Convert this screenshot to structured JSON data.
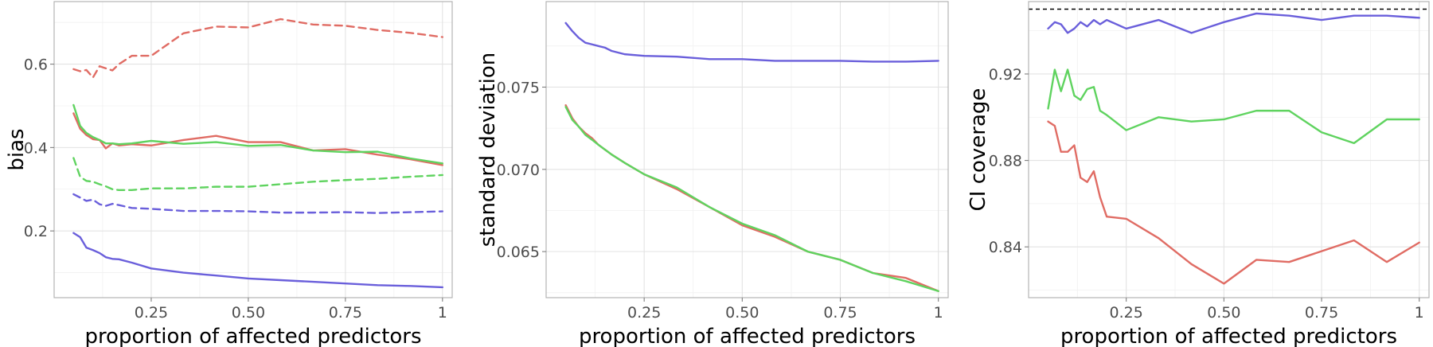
{
  "chart_data": [
    {
      "type": "line",
      "xlabel": "proportion of affected predictors",
      "ylabel": "bias",
      "xlim": [
        0.0,
        1.025
      ],
      "ylim": [
        0.04,
        0.75
      ],
      "x_ticks": [
        {
          "value": 0.25,
          "label": "0.25"
        },
        {
          "value": 0.5,
          "label": "0.50"
        },
        {
          "value": 0.75,
          "label": "0.75"
        },
        {
          "value": 1.0,
          "label": "1"
        }
      ],
      "y_ticks": [
        {
          "value": 0.2,
          "label": "0.2"
        },
        {
          "value": 0.4,
          "label": "0.4"
        },
        {
          "value": 0.6,
          "label": "0.6"
        }
      ],
      "grid": true,
      "series": [
        {
          "color": "#e06c64",
          "dash": "dashed",
          "points": [
            [
              0.05,
              0.588
            ],
            [
              0.067,
              0.583
            ],
            [
              0.083,
              0.586
            ],
            [
              0.1,
              0.568
            ],
            [
              0.117,
              0.595
            ],
            [
              0.133,
              0.59
            ],
            [
              0.15,
              0.585
            ],
            [
              0.167,
              0.6
            ],
            [
              0.2,
              0.62
            ],
            [
              0.25,
              0.62
            ],
            [
              0.333,
              0.674
            ],
            [
              0.417,
              0.69
            ],
            [
              0.5,
              0.688
            ],
            [
              0.583,
              0.708
            ],
            [
              0.667,
              0.695
            ],
            [
              0.75,
              0.692
            ],
            [
              0.833,
              0.682
            ],
            [
              0.917,
              0.675
            ],
            [
              1.0,
              0.665
            ]
          ]
        },
        {
          "color": "#e06c64",
          "dash": "solid",
          "points": [
            [
              0.05,
              0.482
            ],
            [
              0.067,
              0.445
            ],
            [
              0.083,
              0.43
            ],
            [
              0.1,
              0.42
            ],
            [
              0.117,
              0.418
            ],
            [
              0.133,
              0.398
            ],
            [
              0.15,
              0.41
            ],
            [
              0.167,
              0.405
            ],
            [
              0.2,
              0.408
            ],
            [
              0.25,
              0.405
            ],
            [
              0.333,
              0.418
            ],
            [
              0.417,
              0.428
            ],
            [
              0.5,
              0.413
            ],
            [
              0.583,
              0.413
            ],
            [
              0.667,
              0.393
            ],
            [
              0.75,
              0.396
            ],
            [
              0.833,
              0.383
            ],
            [
              0.917,
              0.372
            ],
            [
              1.0,
              0.358
            ]
          ]
        },
        {
          "color": "#5fd35f",
          "dash": "solid",
          "points": [
            [
              0.05,
              0.502
            ],
            [
              0.067,
              0.452
            ],
            [
              0.083,
              0.435
            ],
            [
              0.1,
              0.425
            ],
            [
              0.117,
              0.418
            ],
            [
              0.133,
              0.41
            ],
            [
              0.15,
              0.41
            ],
            [
              0.167,
              0.408
            ],
            [
              0.2,
              0.41
            ],
            [
              0.25,
              0.416
            ],
            [
              0.333,
              0.409
            ],
            [
              0.417,
              0.413
            ],
            [
              0.5,
              0.404
            ],
            [
              0.583,
              0.406
            ],
            [
              0.667,
              0.393
            ],
            [
              0.75,
              0.389
            ],
            [
              0.833,
              0.39
            ],
            [
              0.917,
              0.374
            ],
            [
              1.0,
              0.362
            ]
          ]
        },
        {
          "color": "#5fd35f",
          "dash": "dashed",
          "points": [
            [
              0.05,
              0.375
            ],
            [
              0.067,
              0.33
            ],
            [
              0.083,
              0.32
            ],
            [
              0.1,
              0.318
            ],
            [
              0.117,
              0.312
            ],
            [
              0.133,
              0.307
            ],
            [
              0.15,
              0.3
            ],
            [
              0.167,
              0.298
            ],
            [
              0.2,
              0.298
            ],
            [
              0.25,
              0.302
            ],
            [
              0.333,
              0.302
            ],
            [
              0.417,
              0.306
            ],
            [
              0.5,
              0.306
            ],
            [
              0.583,
              0.312
            ],
            [
              0.667,
              0.318
            ],
            [
              0.75,
              0.322
            ],
            [
              0.833,
              0.325
            ],
            [
              0.917,
              0.33
            ],
            [
              1.0,
              0.334
            ]
          ]
        },
        {
          "color": "#6a5fdb",
          "dash": "dashed",
          "points": [
            [
              0.05,
              0.288
            ],
            [
              0.067,
              0.28
            ],
            [
              0.083,
              0.272
            ],
            [
              0.1,
              0.275
            ],
            [
              0.117,
              0.264
            ],
            [
              0.133,
              0.26
            ],
            [
              0.15,
              0.265
            ],
            [
              0.167,
              0.262
            ],
            [
              0.2,
              0.255
            ],
            [
              0.25,
              0.253
            ],
            [
              0.333,
              0.248
            ],
            [
              0.417,
              0.248
            ],
            [
              0.5,
              0.247
            ],
            [
              0.583,
              0.244
            ],
            [
              0.667,
              0.244
            ],
            [
              0.75,
              0.245
            ],
            [
              0.833,
              0.243
            ],
            [
              0.917,
              0.245
            ],
            [
              1.0,
              0.247
            ]
          ]
        },
        {
          "color": "#6a5fdb",
          "dash": "solid",
          "points": [
            [
              0.05,
              0.195
            ],
            [
              0.067,
              0.185
            ],
            [
              0.083,
              0.16
            ],
            [
              0.1,
              0.154
            ],
            [
              0.117,
              0.147
            ],
            [
              0.133,
              0.137
            ],
            [
              0.15,
              0.133
            ],
            [
              0.167,
              0.132
            ],
            [
              0.2,
              0.124
            ],
            [
              0.25,
              0.11
            ],
            [
              0.333,
              0.1
            ],
            [
              0.417,
              0.093
            ],
            [
              0.5,
              0.086
            ],
            [
              0.583,
              0.082
            ],
            [
              0.667,
              0.078
            ],
            [
              0.75,
              0.074
            ],
            [
              0.833,
              0.07
            ],
            [
              0.917,
              0.068
            ],
            [
              1.0,
              0.065
            ]
          ]
        }
      ]
    },
    {
      "type": "line",
      "xlabel": "proportion of affected predictors",
      "ylabel": "standard deviation",
      "xlim": [
        0.0,
        1.025
      ],
      "ylim": [
        0.0622,
        0.0802
      ],
      "x_ticks": [
        {
          "value": 0.25,
          "label": "0.25"
        },
        {
          "value": 0.5,
          "label": "0.50"
        },
        {
          "value": 0.75,
          "label": "0.75"
        },
        {
          "value": 1.0,
          "label": "1"
        }
      ],
      "y_ticks": [
        {
          "value": 0.065,
          "label": "0.065"
        },
        {
          "value": 0.07,
          "label": "0.070"
        },
        {
          "value": 0.075,
          "label": "0.075"
        }
      ],
      "grid": true,
      "series": [
        {
          "color": "#6a5fdb",
          "dash": "solid",
          "points": [
            [
              0.05,
              0.0789
            ],
            [
              0.067,
              0.0784
            ],
            [
              0.083,
              0.078
            ],
            [
              0.1,
              0.0777
            ],
            [
              0.117,
              0.0776
            ],
            [
              0.133,
              0.0775
            ],
            [
              0.15,
              0.0774
            ],
            [
              0.167,
              0.0772
            ],
            [
              0.2,
              0.077
            ],
            [
              0.25,
              0.0769
            ],
            [
              0.333,
              0.07685
            ],
            [
              0.417,
              0.0767
            ],
            [
              0.5,
              0.0767
            ],
            [
              0.583,
              0.0766
            ],
            [
              0.667,
              0.0766
            ],
            [
              0.75,
              0.0766
            ],
            [
              0.833,
              0.07655
            ],
            [
              0.917,
              0.07655
            ],
            [
              1.0,
              0.0766
            ]
          ]
        },
        {
          "color": "#e06c64",
          "dash": "solid",
          "points": [
            [
              0.05,
              0.0739
            ],
            [
              0.067,
              0.0731
            ],
            [
              0.083,
              0.0726
            ],
            [
              0.1,
              0.0722
            ],
            [
              0.117,
              0.0719
            ],
            [
              0.133,
              0.0715
            ],
            [
              0.15,
              0.0712
            ],
            [
              0.167,
              0.0709
            ],
            [
              0.2,
              0.0704
            ],
            [
              0.25,
              0.0697
            ],
            [
              0.333,
              0.0688
            ],
            [
              0.417,
              0.0677
            ],
            [
              0.5,
              0.0666
            ],
            [
              0.583,
              0.0659
            ],
            [
              0.667,
              0.065
            ],
            [
              0.75,
              0.0645
            ],
            [
              0.833,
              0.0637
            ],
            [
              0.917,
              0.0634
            ],
            [
              1.0,
              0.0626
            ]
          ]
        },
        {
          "color": "#5fd35f",
          "dash": "solid",
          "points": [
            [
              0.05,
              0.0738
            ],
            [
              0.067,
              0.073
            ],
            [
              0.083,
              0.0726
            ],
            [
              0.1,
              0.0721
            ],
            [
              0.117,
              0.0718
            ],
            [
              0.133,
              0.0715
            ],
            [
              0.15,
              0.0712
            ],
            [
              0.167,
              0.0709
            ],
            [
              0.2,
              0.0704
            ],
            [
              0.25,
              0.0697
            ],
            [
              0.333,
              0.0689
            ],
            [
              0.417,
              0.0677
            ],
            [
              0.5,
              0.0667
            ],
            [
              0.583,
              0.066
            ],
            [
              0.667,
              0.065
            ],
            [
              0.75,
              0.0645
            ],
            [
              0.833,
              0.0637
            ],
            [
              0.917,
              0.0632
            ],
            [
              1.0,
              0.0626
            ]
          ]
        }
      ]
    },
    {
      "type": "line",
      "xlabel": "proportion of affected predictors",
      "ylabel": "CI coverage",
      "xlim": [
        0.0,
        1.025
      ],
      "ylim": [
        0.8165,
        0.9535
      ],
      "x_ticks": [
        {
          "value": 0.25,
          "label": "0.25"
        },
        {
          "value": 0.5,
          "label": "0.50"
        },
        {
          "value": 0.75,
          "label": "0.75"
        },
        {
          "value": 1.0,
          "label": "1"
        }
      ],
      "y_ticks": [
        {
          "value": 0.84,
          "label": "0.84"
        },
        {
          "value": 0.88,
          "label": "0.88"
        },
        {
          "value": 0.92,
          "label": "0.92"
        }
      ],
      "grid": true,
      "reference_line": {
        "y": 0.95,
        "color": "#000000",
        "dash": "dashed"
      },
      "series": [
        {
          "color": "#6a5fdb",
          "dash": "solid",
          "points": [
            [
              0.05,
              0.941
            ],
            [
              0.067,
              0.944
            ],
            [
              0.083,
              0.943
            ],
            [
              0.1,
              0.939
            ],
            [
              0.117,
              0.941
            ],
            [
              0.133,
              0.944
            ],
            [
              0.15,
              0.942
            ],
            [
              0.167,
              0.945
            ],
            [
              0.183,
              0.943
            ],
            [
              0.2,
              0.945
            ],
            [
              0.25,
              0.941
            ],
            [
              0.333,
              0.945
            ],
            [
              0.417,
              0.939
            ],
            [
              0.5,
              0.944
            ],
            [
              0.583,
              0.948
            ],
            [
              0.667,
              0.947
            ],
            [
              0.75,
              0.945
            ],
            [
              0.833,
              0.947
            ],
            [
              0.917,
              0.947
            ],
            [
              1.0,
              0.946
            ]
          ]
        },
        {
          "color": "#5fd35f",
          "dash": "solid",
          "points": [
            [
              0.05,
              0.904
            ],
            [
              0.067,
              0.922
            ],
            [
              0.083,
              0.912
            ],
            [
              0.1,
              0.922
            ],
            [
              0.117,
              0.91
            ],
            [
              0.133,
              0.908
            ],
            [
              0.15,
              0.913
            ],
            [
              0.167,
              0.914
            ],
            [
              0.183,
              0.903
            ],
            [
              0.2,
              0.901
            ],
            [
              0.25,
              0.894
            ],
            [
              0.333,
              0.9
            ],
            [
              0.417,
              0.898
            ],
            [
              0.5,
              0.899
            ],
            [
              0.583,
              0.903
            ],
            [
              0.667,
              0.903
            ],
            [
              0.75,
              0.893
            ],
            [
              0.833,
              0.888
            ],
            [
              0.917,
              0.899
            ],
            [
              1.0,
              0.899
            ]
          ]
        },
        {
          "color": "#e06c64",
          "dash": "solid",
          "points": [
            [
              0.05,
              0.898
            ],
            [
              0.067,
              0.896
            ],
            [
              0.083,
              0.884
            ],
            [
              0.1,
              0.884
            ],
            [
              0.117,
              0.887
            ],
            [
              0.133,
              0.872
            ],
            [
              0.15,
              0.87
            ],
            [
              0.167,
              0.875
            ],
            [
              0.183,
              0.863
            ],
            [
              0.2,
              0.854
            ],
            [
              0.25,
              0.853
            ],
            [
              0.333,
              0.844
            ],
            [
              0.417,
              0.832
            ],
            [
              0.5,
              0.823
            ],
            [
              0.583,
              0.834
            ],
            [
              0.667,
              0.833
            ],
            [
              0.75,
              0.838
            ],
            [
              0.833,
              0.843
            ],
            [
              0.917,
              0.833
            ],
            [
              1.0,
              0.842
            ]
          ]
        }
      ]
    }
  ]
}
